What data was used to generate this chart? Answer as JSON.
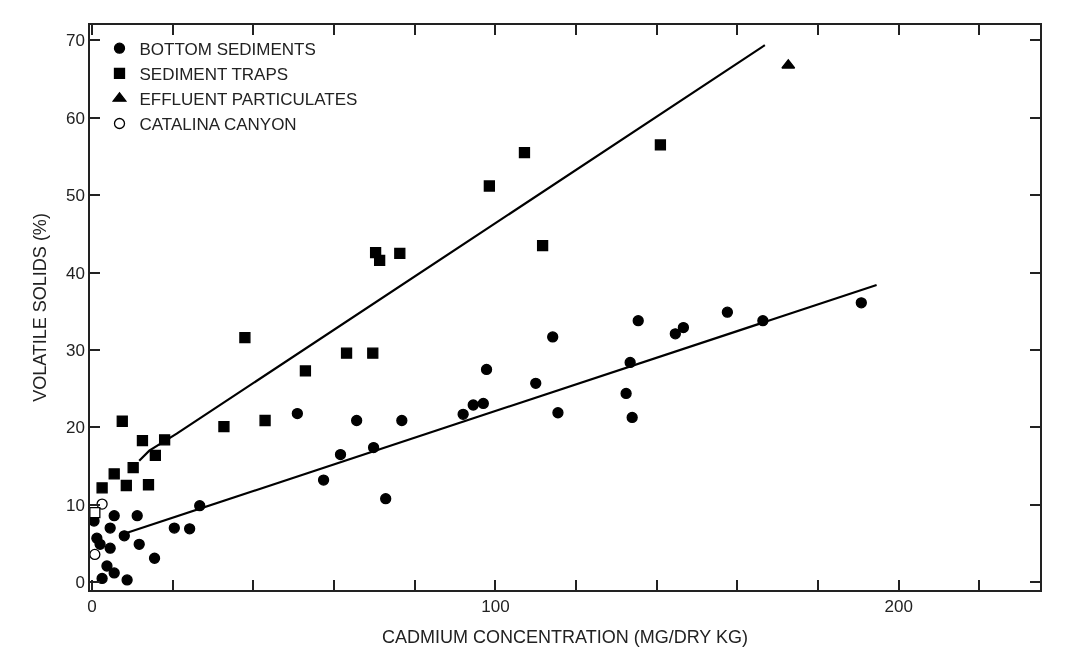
{
  "chart_data": {
    "type": "scatter",
    "xlabel": "CADMIUM CONCENTRATION (MG/DRY KG)",
    "ylabel": "VOLATILE SOLIDS (%)",
    "xlim": [
      -0.5,
      235
    ],
    "ylim": [
      -1,
      72
    ],
    "xticks": [
      0,
      {
        "value": 20,
        "label": null
      },
      {
        "value": 40,
        "label": null
      },
      {
        "value": 60,
        "label": null
      },
      {
        "value": 80,
        "label": null
      },
      100,
      {
        "value": 120,
        "label": null
      },
      {
        "value": 140,
        "label": null
      },
      {
        "value": 160,
        "label": null
      },
      {
        "value": 180,
        "label": null
      },
      200,
      {
        "value": 220,
        "label": null
      }
    ],
    "yticks": [
      0,
      10,
      20,
      30,
      40,
      50,
      60,
      70
    ],
    "legend": "top left",
    "series": [
      {
        "name": "BOTTOM SEDIMENTS",
        "color": "#000000",
        "marker": "circle",
        "x": [
          50.9,
          57.4,
          26.7,
          11.2,
          8.0,
          20.4,
          24.2,
          11.7,
          15.5,
          8.7,
          2.5,
          5.5,
          3.7,
          4.5,
          1.2,
          5.5,
          0.5,
          4.5,
          2.0,
          65.6,
          76.8,
          97.8,
          92.0,
          94.5,
          97.0,
          61.6,
          69.8,
          72.8,
          114.2,
          135.4,
          110.0,
          133.4,
          132.4,
          133.9,
          115.5,
          144.6,
          146.6,
          157.5,
          166.3,
          190.7
        ],
        "values": [
          21.8,
          13.2,
          9.9,
          8.6,
          6.0,
          7.0,
          6.9,
          4.9,
          3.1,
          0.3,
          0.5,
          1.2,
          2.1,
          4.4,
          5.7,
          8.6,
          7.9,
          7.0,
          4.9,
          20.9,
          20.9,
          27.5,
          21.7,
          22.9,
          23.1,
          16.5,
          17.4,
          10.8,
          31.7,
          33.8,
          25.7,
          28.4,
          24.4,
          21.3,
          21.9,
          32.1,
          32.9,
          34.9,
          33.8,
          36.1
        ]
      },
      {
        "name": "SEDIMENT TRAPS",
        "color": "#000000",
        "marker": "square",
        "x": [
          7.5,
          12.5,
          18.0,
          15.7,
          10.2,
          5.5,
          2.5,
          8.5,
          14.0,
          32.7,
          42.9,
          37.9,
          52.9,
          63.1,
          69.6,
          70.3,
          71.3,
          76.3,
          98.5,
          107.2,
          111.7,
          140.9
        ],
        "values": [
          20.8,
          18.3,
          18.4,
          16.4,
          14.8,
          14.0,
          12.2,
          12.5,
          12.6,
          20.1,
          20.9,
          31.6,
          27.3,
          29.6,
          29.6,
          42.6,
          41.6,
          42.5,
          51.2,
          55.5,
          43.5,
          56.5
        ]
      },
      {
        "name": "EFFLUENT PARTICULATES",
        "color": "#000000",
        "marker": "triangle",
        "x": [
          172.6
        ],
        "values": [
          66.8
        ]
      },
      {
        "name": "CATALINA CANYON",
        "color": "#ffffff",
        "marker": "circle",
        "x": [
          2.5,
          0.7
        ],
        "values": [
          10.1,
          3.6
        ]
      },
      {
        "color": "#ffffff",
        "marker": "square",
        "x": [
          0.7
        ],
        "values": [
          9.0
        ]
      },
      {
        "type": "line",
        "color": "#000000",
        "marker": "none",
        "x": [
          11.7,
          14.2,
          21.0,
          166.8
        ],
        "values": [
          15.7,
          17.0,
          19.2,
          69.4
        ]
      },
      {
        "type": "line",
        "color": "#000000",
        "marker": "none",
        "x": [
          8.7,
          194.5
        ],
        "values": [
          6.4,
          38.4
        ]
      }
    ]
  }
}
